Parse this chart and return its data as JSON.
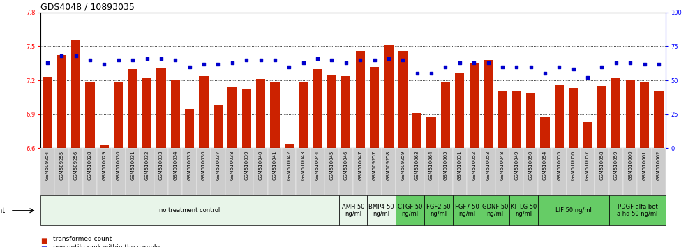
{
  "title": "GDS4048 / 10893035",
  "samples": [
    "GSM509254",
    "GSM509255",
    "GSM509256",
    "GSM510028",
    "GSM510029",
    "GSM510030",
    "GSM510031",
    "GSM510032",
    "GSM510033",
    "GSM510034",
    "GSM510035",
    "GSM510036",
    "GSM510037",
    "GSM510038",
    "GSM510039",
    "GSM510040",
    "GSM510041",
    "GSM510042",
    "GSM510043",
    "GSM510044",
    "GSM510045",
    "GSM510046",
    "GSM510047",
    "GSM509257",
    "GSM509258",
    "GSM509259",
    "GSM510063",
    "GSM510064",
    "GSM510065",
    "GSM510051",
    "GSM510052",
    "GSM510053",
    "GSM510048",
    "GSM510049",
    "GSM510050",
    "GSM510054",
    "GSM510055",
    "GSM510056",
    "GSM510057",
    "GSM510058",
    "GSM510059",
    "GSM510060",
    "GSM510061",
    "GSM510062"
  ],
  "bar_values": [
    7.23,
    7.42,
    7.55,
    7.18,
    6.63,
    7.19,
    7.3,
    7.22,
    7.31,
    7.2,
    6.95,
    7.24,
    6.98,
    7.14,
    7.12,
    7.21,
    7.19,
    6.64,
    7.18,
    7.3,
    7.25,
    7.24,
    7.46,
    7.32,
    7.51,
    7.46,
    6.91,
    6.88,
    7.19,
    7.27,
    7.35,
    7.38,
    7.11,
    7.11,
    7.09,
    6.88,
    7.16,
    7.13,
    6.83,
    7.15,
    7.22,
    7.2,
    7.19,
    7.1
  ],
  "dot_values": [
    63,
    68,
    68,
    65,
    62,
    65,
    65,
    66,
    66,
    65,
    60,
    62,
    62,
    63,
    65,
    65,
    65,
    60,
    63,
    66,
    65,
    63,
    65,
    65,
    66,
    65,
    55,
    55,
    60,
    63,
    63,
    63,
    60,
    60,
    60,
    55,
    60,
    58,
    52,
    60,
    63,
    63,
    62,
    62
  ],
  "agents": [
    {
      "label": "no treatment control",
      "start": 0,
      "end": 21,
      "color": "#e8f5e9",
      "bright": false
    },
    {
      "label": "AMH 50\nng/ml",
      "start": 21,
      "end": 23,
      "color": "#e8f5e9",
      "bright": false
    },
    {
      "label": "BMP4 50\nng/ml",
      "start": 23,
      "end": 25,
      "color": "#e8f5e9",
      "bright": false
    },
    {
      "label": "CTGF 50\nng/ml",
      "start": 25,
      "end": 27,
      "color": "#66cc66",
      "bright": true
    },
    {
      "label": "FGF2 50\nng/ml",
      "start": 27,
      "end": 29,
      "color": "#66cc66",
      "bright": true
    },
    {
      "label": "FGF7 50\nng/ml",
      "start": 29,
      "end": 31,
      "color": "#66cc66",
      "bright": true
    },
    {
      "label": "GDNF 50\nng/ml",
      "start": 31,
      "end": 33,
      "color": "#66cc66",
      "bright": true
    },
    {
      "label": "KITLG 50\nng/ml",
      "start": 33,
      "end": 35,
      "color": "#66cc66",
      "bright": true
    },
    {
      "label": "LIF 50 ng/ml",
      "start": 35,
      "end": 40,
      "color": "#66cc66",
      "bright": true
    },
    {
      "label": "PDGF alfa bet\na hd 50 ng/ml",
      "start": 40,
      "end": 44,
      "color": "#66cc66",
      "bright": true
    }
  ],
  "ylim_left": [
    6.6,
    7.8
  ],
  "ylim_right": [
    0,
    100
  ],
  "yticks_left": [
    6.6,
    6.9,
    7.2,
    7.5,
    7.8
  ],
  "yticks_right": [
    0,
    25,
    50,
    75,
    100
  ],
  "bar_color": "#cc2200",
  "dot_color": "#0000cc",
  "bar_bottom": 6.6,
  "title_fontsize": 9,
  "tick_fontsize": 6,
  "sample_fontsize": 5,
  "agent_fontsize": 6
}
